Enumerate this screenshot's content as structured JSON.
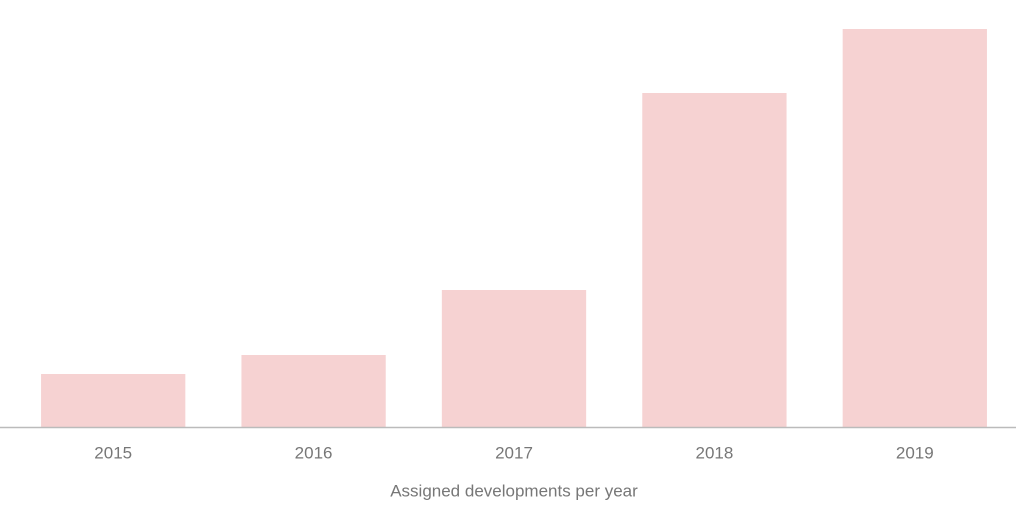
{
  "chart_data": {
    "type": "bar",
    "x_label": "Assigned developments per year",
    "categories": [
      "2015",
      "2016",
      "2017",
      "2018",
      "2019"
    ],
    "values": [
      53,
      72,
      137,
      334,
      398
    ],
    "color": "#f6d2d2"
  }
}
